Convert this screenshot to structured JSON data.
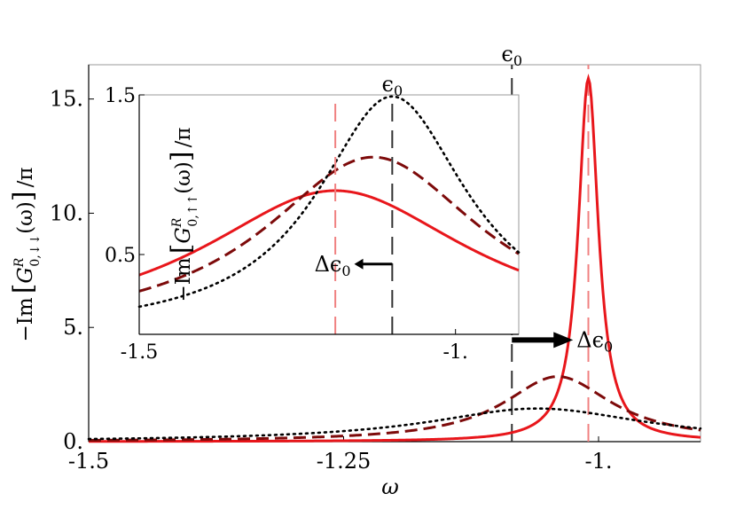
{
  "chart_data": [
    {
      "type": "line",
      "xlabel": "ω",
      "ylabel_prefix": "−Im",
      "ylabel_g": "G",
      "ylabel_sup": "R",
      "ylabel_sub": "0,↓↓",
      "ylabel_arg": "(ω)",
      "ylabel_suffix": "/π",
      "xlim": [
        -1.5,
        -0.9
      ],
      "ylim": [
        0,
        16.5
      ],
      "x_ticks": [
        -1.5,
        -1.25,
        -1.0
      ],
      "x_tick_labels": [
        "-1.5",
        "-1.25",
        "-1."
      ],
      "y_ticks": [
        0,
        5,
        10,
        15
      ],
      "y_tick_labels": [
        "0.",
        "5.",
        "10.",
        "15."
      ],
      "vlines": [
        {
          "x": -1.085,
          "color": "#333333",
          "style": "dashed",
          "label": "ϵ",
          "label_sub": "0"
        },
        {
          "x": -1.01,
          "color": "#f08080",
          "style": "dashed"
        }
      ],
      "annotation": {
        "text": "Δϵ",
        "sub": "0",
        "arrow_from": -1.085,
        "arrow_to": -1.025,
        "arrow_y": 4.45
      },
      "series": [
        {
          "style": "solid",
          "color": "#e8161b",
          "center": -1.01,
          "gamma": 0.012,
          "peak": 15.9
        },
        {
          "style": "dashed",
          "color": "#7d0a0a",
          "center": -1.04,
          "gamma": 0.065,
          "peak": 2.85
        },
        {
          "style": "dotted",
          "color": "#000000",
          "center": -1.06,
          "gamma": 0.13,
          "peak": 1.45
        }
      ]
    },
    {
      "type": "line",
      "inset": true,
      "ylabel_prefix": "−Im",
      "ylabel_g": "G",
      "ylabel_sup": "R",
      "ylabel_sub": "0,↑↑",
      "ylabel_arg": "(ω)",
      "ylabel_suffix": "/π",
      "xlim": [
        -1.5,
        -0.9
      ],
      "ylim": [
        0.0,
        1.5
      ],
      "x_ticks": [
        -1.5,
        -1.0
      ],
      "x_tick_labels": [
        "-1.5",
        "-1."
      ],
      "y_ticks": [
        0.5,
        1.5
      ],
      "y_tick_labels": [
        "0.5",
        "1.5"
      ],
      "vlines": [
        {
          "x": -1.1,
          "color": "#333333",
          "style": "dashed",
          "label": "ϵ",
          "label_sub": "0"
        },
        {
          "x": -1.19,
          "color": "#f08080",
          "style": "dashed"
        }
      ],
      "annotation": {
        "text": "Δϵ",
        "sub": "0",
        "arrow_from": -1.1,
        "arrow_to": -1.16,
        "arrow_y": 0.44
      },
      "series": [
        {
          "style": "solid",
          "color": "#e8161b",
          "center": -1.19,
          "gamma": 0.26,
          "peak": 0.9
        },
        {
          "style": "dashed",
          "color": "#7d0a0a",
          "center": -1.13,
          "gamma": 0.21,
          "peak": 1.11
        },
        {
          "style": "dotted",
          "color": "#000000",
          "center": -1.1,
          "gamma": 0.145,
          "peak": 1.49
        }
      ]
    }
  ]
}
